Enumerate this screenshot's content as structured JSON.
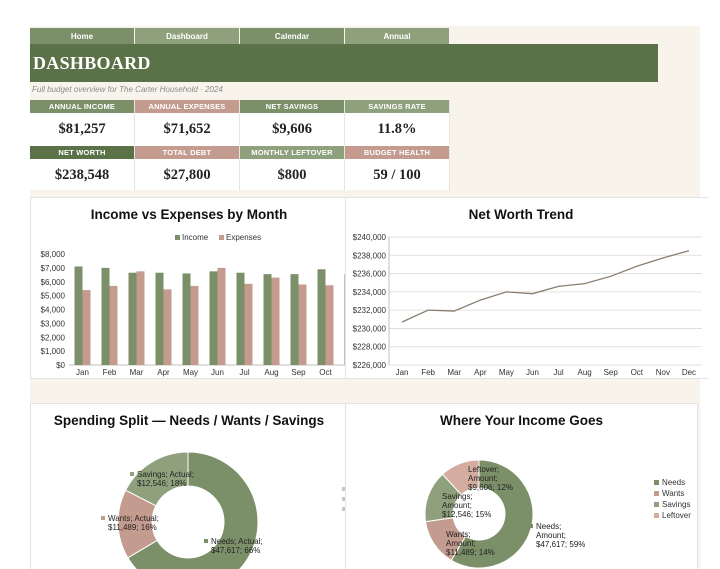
{
  "nav": {
    "tabs": [
      "Home",
      "Dashboard",
      "Calendar",
      "Annual"
    ]
  },
  "header": {
    "title": "DASHBOARD",
    "subtitle": "Full budget overview for The Carter Household  ·  2024"
  },
  "kpis": [
    {
      "label": "ANNUAL INCOME",
      "value": "$81,257",
      "color": "#7b8f68"
    },
    {
      "label": "ANNUAL EXPENSES",
      "value": "$71,652",
      "color": "#c49b8f"
    },
    {
      "label": "NET SAVINGS",
      "value": "$9,606",
      "color": "#7b8f68"
    },
    {
      "label": "SAVINGS RATE",
      "value": "11.8%",
      "color": "#8fa07d"
    },
    {
      "label": "NET WORTH",
      "value": "$238,548",
      "color": "#5b7248"
    },
    {
      "label": "TOTAL DEBT",
      "value": "$27,800",
      "color": "#c49b8f"
    },
    {
      "label": "MONTHLY LEFTOVER",
      "value": "$800",
      "color": "#8fa07d"
    },
    {
      "label": "BUDGET HEALTH",
      "value": "59 / 100",
      "color": "#c49b8f"
    }
  ],
  "colors": {
    "income": "#7b8f68",
    "expenses": "#c49b8f",
    "needs": "#7b8f68",
    "wants": "#c49b8f",
    "savings": "#8fa07d",
    "leftover": "#d4aca0",
    "line": "#8a7d6e"
  },
  "chart_data": [
    {
      "type": "bar",
      "title": "Income vs Expenses by Month",
      "categories": [
        "Jan",
        "Feb",
        "Mar",
        "Apr",
        "May",
        "Jun",
        "Jul",
        "Aug",
        "Sep",
        "Oct",
        "N"
      ],
      "series": [
        {
          "name": "Income",
          "values": [
            7100,
            7000,
            6650,
            6650,
            6600,
            6750,
            6650,
            6550,
            6550,
            6900,
            6550
          ]
        },
        {
          "name": "Expenses",
          "values": [
            5400,
            5700,
            6750,
            5450,
            5700,
            7000,
            5850,
            6300,
            5800,
            5750,
            0
          ]
        }
      ],
      "yticks": [
        "$0",
        "$1,000",
        "$2,000",
        "$3,000",
        "$4,000",
        "$5,000",
        "$6,000",
        "$7,000",
        "$8,000"
      ],
      "ylim": [
        0,
        8000
      ],
      "legend": "top"
    },
    {
      "type": "line",
      "title": "Net Worth Trend",
      "categories": [
        "Jan",
        "Feb",
        "Mar",
        "Apr",
        "May",
        "Jun",
        "Jul",
        "Aug",
        "Sep",
        "Oct",
        "Nov",
        "Dec"
      ],
      "values": [
        230700,
        232000,
        231900,
        233100,
        234000,
        233800,
        234600,
        234900,
        235700,
        236800,
        237700,
        238500
      ],
      "yticks": [
        "$226,000",
        "$228,000",
        "$230,000",
        "$232,000",
        "$234,000",
        "$236,000",
        "$238,000",
        "$240,000"
      ],
      "ylim": [
        226000,
        240000
      ]
    },
    {
      "type": "pie",
      "title": "Spending Split — Needs / Wants / Savings",
      "slices": [
        {
          "name": "Needs",
          "value": 47617,
          "label_lines": [
            "Needs; Actual;",
            "$47,617; 66%"
          ]
        },
        {
          "name": "Wants",
          "value": 11489,
          "label_lines": [
            "Wants; Actual;",
            "$11,489; 16%"
          ]
        },
        {
          "name": "Savings",
          "value": 12546,
          "label_lines": [
            "Savings; Actual;",
            "$12,546; 18%"
          ]
        }
      ]
    },
    {
      "type": "pie",
      "title": "Where Your Income Goes",
      "slices": [
        {
          "name": "Needs",
          "value": 47617,
          "label_lines": [
            "Needs;",
            "Amount;",
            "$47,617; 59%"
          ]
        },
        {
          "name": "Wants",
          "value": 11489,
          "label_lines": [
            "Wants;",
            "Amount;",
            "$11,489; 14%"
          ]
        },
        {
          "name": "Savings",
          "value": 12546,
          "label_lines": [
            "Savings;",
            "Amount;",
            "$12,546; 15%"
          ]
        },
        {
          "name": "Leftover",
          "value": 9606,
          "label_lines": [
            "Leftover;",
            "Amount;",
            "$9,606; 12%"
          ]
        }
      ],
      "legend": [
        "Needs",
        "Wants",
        "Savings",
        "Leftover"
      ]
    }
  ]
}
